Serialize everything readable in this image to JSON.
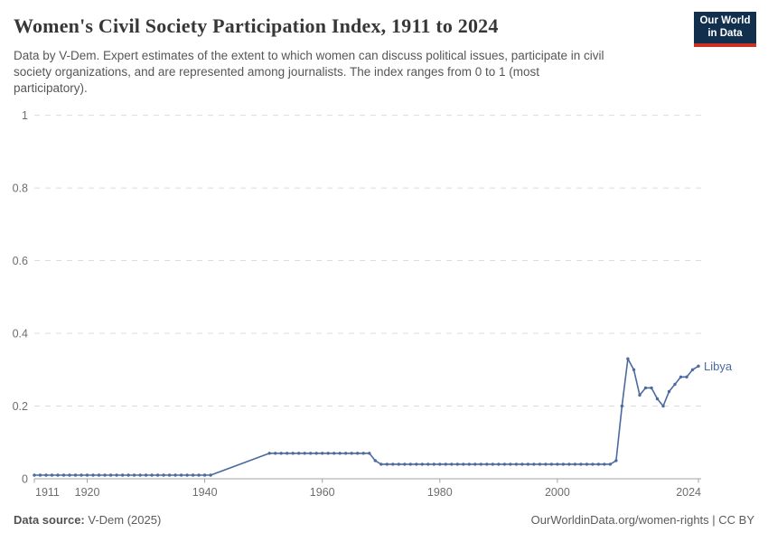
{
  "header": {
    "title": "Women's Civil Society Participation Index, 1911 to 2024",
    "subtitle": "Data by V-Dem. Expert estimates of the extent to which women can discuss political issues, participate in civil society organizations, and are represented among journalists. The index ranges from 0 to 1 (most participatory).",
    "logo": {
      "line1": "Our World",
      "line2": "in Data",
      "bg": "#12304e",
      "accent": "#cb3025"
    }
  },
  "chart_data": {
    "type": "line",
    "title": "Women's Civil Society Participation Index, 1911 to 2024",
    "xlabel": "",
    "ylabel": "",
    "xlim": [
      1911,
      2024
    ],
    "ylim": [
      0,
      1
    ],
    "grid": "horizontal-dashed",
    "x_ticks": [
      1911,
      1920,
      1940,
      1960,
      1980,
      2000,
      2024
    ],
    "y_ticks": [
      0,
      0.2,
      0.4,
      0.6,
      0.8,
      1
    ],
    "y_tick_labels": [
      "0",
      "0.2",
      "0.4",
      "0.6",
      "0.8",
      "1"
    ],
    "line_color": "#4c6aa0",
    "grid_color": "#dcdcdc",
    "axis_color": "#a3a3a3",
    "tick_label_color": "#6e6e6e",
    "end_label": "Libya",
    "series": [
      {
        "name": "Libya",
        "color": "#4c6aa0",
        "points": [
          [
            1911,
            0.01
          ],
          [
            1912,
            0.01
          ],
          [
            1913,
            0.01
          ],
          [
            1914,
            0.01
          ],
          [
            1915,
            0.01
          ],
          [
            1916,
            0.01
          ],
          [
            1917,
            0.01
          ],
          [
            1918,
            0.01
          ],
          [
            1919,
            0.01
          ],
          [
            1920,
            0.01
          ],
          [
            1921,
            0.01
          ],
          [
            1922,
            0.01
          ],
          [
            1923,
            0.01
          ],
          [
            1924,
            0.01
          ],
          [
            1925,
            0.01
          ],
          [
            1926,
            0.01
          ],
          [
            1927,
            0.01
          ],
          [
            1928,
            0.01
          ],
          [
            1929,
            0.01
          ],
          [
            1930,
            0.01
          ],
          [
            1931,
            0.01
          ],
          [
            1932,
            0.01
          ],
          [
            1933,
            0.01
          ],
          [
            1934,
            0.01
          ],
          [
            1935,
            0.01
          ],
          [
            1936,
            0.01
          ],
          [
            1937,
            0.01
          ],
          [
            1938,
            0.01
          ],
          [
            1939,
            0.01
          ],
          [
            1940,
            0.01
          ],
          [
            1941,
            0.01
          ],
          [
            1951,
            0.07
          ],
          [
            1952,
            0.07
          ],
          [
            1953,
            0.07
          ],
          [
            1954,
            0.07
          ],
          [
            1955,
            0.07
          ],
          [
            1956,
            0.07
          ],
          [
            1957,
            0.07
          ],
          [
            1958,
            0.07
          ],
          [
            1959,
            0.07
          ],
          [
            1960,
            0.07
          ],
          [
            1961,
            0.07
          ],
          [
            1962,
            0.07
          ],
          [
            1963,
            0.07
          ],
          [
            1964,
            0.07
          ],
          [
            1965,
            0.07
          ],
          [
            1966,
            0.07
          ],
          [
            1967,
            0.07
          ],
          [
            1968,
            0.07
          ],
          [
            1969,
            0.05
          ],
          [
            1970,
            0.04
          ],
          [
            1971,
            0.04
          ],
          [
            1972,
            0.04
          ],
          [
            1973,
            0.04
          ],
          [
            1974,
            0.04
          ],
          [
            1975,
            0.04
          ],
          [
            1976,
            0.04
          ],
          [
            1977,
            0.04
          ],
          [
            1978,
            0.04
          ],
          [
            1979,
            0.04
          ],
          [
            1980,
            0.04
          ],
          [
            1981,
            0.04
          ],
          [
            1982,
            0.04
          ],
          [
            1983,
            0.04
          ],
          [
            1984,
            0.04
          ],
          [
            1985,
            0.04
          ],
          [
            1986,
            0.04
          ],
          [
            1987,
            0.04
          ],
          [
            1988,
            0.04
          ],
          [
            1989,
            0.04
          ],
          [
            1990,
            0.04
          ],
          [
            1991,
            0.04
          ],
          [
            1992,
            0.04
          ],
          [
            1993,
            0.04
          ],
          [
            1994,
            0.04
          ],
          [
            1995,
            0.04
          ],
          [
            1996,
            0.04
          ],
          [
            1997,
            0.04
          ],
          [
            1998,
            0.04
          ],
          [
            1999,
            0.04
          ],
          [
            2000,
            0.04
          ],
          [
            2001,
            0.04
          ],
          [
            2002,
            0.04
          ],
          [
            2003,
            0.04
          ],
          [
            2004,
            0.04
          ],
          [
            2005,
            0.04
          ],
          [
            2006,
            0.04
          ],
          [
            2007,
            0.04
          ],
          [
            2008,
            0.04
          ],
          [
            2009,
            0.04
          ],
          [
            2010,
            0.05
          ],
          [
            2011,
            0.2
          ],
          [
            2012,
            0.33
          ],
          [
            2013,
            0.3
          ],
          [
            2014,
            0.23
          ],
          [
            2015,
            0.25
          ],
          [
            2016,
            0.25
          ],
          [
            2017,
            0.22
          ],
          [
            2018,
            0.2
          ],
          [
            2019,
            0.24
          ],
          [
            2020,
            0.26
          ],
          [
            2021,
            0.28
          ],
          [
            2022,
            0.28
          ],
          [
            2023,
            0.3
          ],
          [
            2024,
            0.31
          ]
        ]
      }
    ]
  },
  "footer": {
    "source_label": "Data source:",
    "source_value": " V-Dem (2025)",
    "credit": "OurWorldinData.org/women-rights | CC BY"
  }
}
